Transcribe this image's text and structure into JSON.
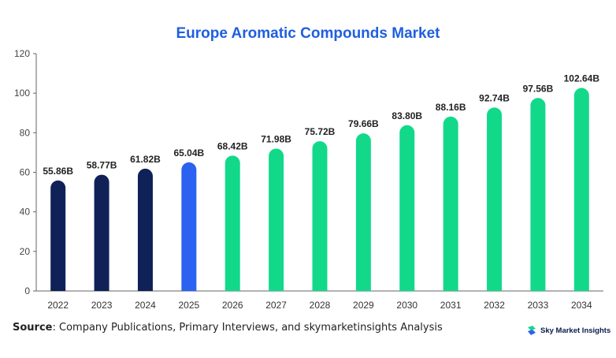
{
  "title": "Europe Aromatic Compounds Market",
  "source": {
    "label": "Source",
    "text": ": Company Publications, Primary Interviews, and skymarketinsights Analysis"
  },
  "brand": {
    "name": "Sky Market Insights",
    "icon": "sky-logo-icon"
  },
  "colors": {
    "title": "#1f5fe0",
    "historical": "#0f2157",
    "current": "#2b62f0",
    "forecast": "#12d98a",
    "axis": "#666666"
  },
  "chart_data": {
    "type": "bar",
    "title": "Europe Aromatic Compounds Market",
    "categories": [
      "2022",
      "2023",
      "2024",
      "2025",
      "2026",
      "2027",
      "2028",
      "2029",
      "2030",
      "2031",
      "2032",
      "2033",
      "2034"
    ],
    "values": [
      55.86,
      58.77,
      61.82,
      65.04,
      68.42,
      71.98,
      75.72,
      79.66,
      83.8,
      88.16,
      92.74,
      97.56,
      102.64
    ],
    "labels": [
      "55.86B",
      "58.77B",
      "61.82B",
      "65.04B",
      "68.42B",
      "71.98B",
      "75.72B",
      "79.66B",
      "83.80B",
      "88.16B",
      "92.74B",
      "97.56B",
      "102.64B"
    ],
    "bar_groups": [
      "historical",
      "historical",
      "historical",
      "current",
      "forecast",
      "forecast",
      "forecast",
      "forecast",
      "forecast",
      "forecast",
      "forecast",
      "forecast",
      "forecast"
    ],
    "ylim": [
      0,
      120
    ],
    "yticks": [
      0,
      20,
      40,
      60,
      80,
      100,
      120
    ],
    "xlabel": "",
    "ylabel": "",
    "grid": false,
    "legend": "none"
  }
}
